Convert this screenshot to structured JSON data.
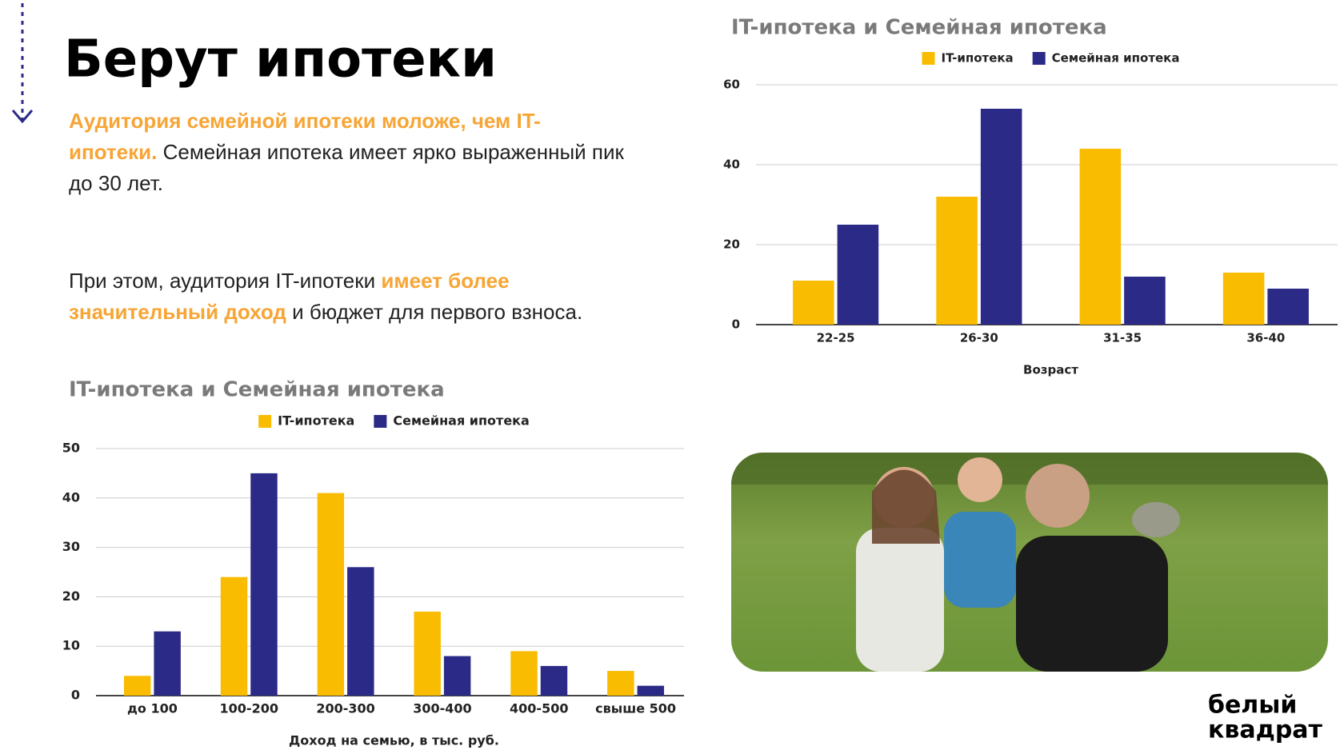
{
  "slide": {
    "title": "Берут ипотеки",
    "paragraph_1": {
      "highlight": "Аудитория семейной ипотеки моложе, чем IT-ипотеки.",
      "text": "Семейная ипотека имеет ярко выраженный пик до 30 лет."
    },
    "paragraph_2": {
      "text_1": "При этом, аудитория IT-ипотеки",
      "highlight": "имеет более значительный доход",
      "text_2": "и бюджет для первого взноса."
    },
    "logo": [
      "белый",
      "квадрат"
    ]
  },
  "chart_data": [
    {
      "type": "bar",
      "title": "IT-ипотека и Семейная ипотека",
      "x_label": "Возраст",
      "categories": [
        "22-25",
        "26-30",
        "31-35",
        "36-40"
      ],
      "series": [
        {
          "name": "IT-ипотека",
          "color": "#f9bc00",
          "values": [
            11,
            32,
            44,
            13
          ]
        },
        {
          "name": "Семейная ипотека",
          "color": "#2b2a86",
          "values": [
            25,
            54,
            12,
            9
          ]
        }
      ],
      "ylim": [
        0,
        60
      ],
      "yticks": [
        0,
        20,
        40,
        60
      ],
      "grid": true,
      "legend": "top"
    },
    {
      "type": "bar",
      "title": "IT-ипотека и Семейная ипотека",
      "x_label": "Доход на семью, в тыс. руб.",
      "categories": [
        "до 100",
        "100-200",
        "200-300",
        "300-400",
        "400-500",
        "свыше 500"
      ],
      "series": [
        {
          "name": "IT-ипотека",
          "color": "#f9bc00",
          "values": [
            4,
            24,
            41,
            17,
            9,
            5
          ]
        },
        {
          "name": "Семейная ипотека",
          "color": "#2b2a86",
          "values": [
            13,
            45,
            26,
            8,
            6,
            2
          ]
        }
      ],
      "ylim": [
        0,
        50
      ],
      "yticks": [
        0,
        10,
        20,
        30,
        40,
        50
      ],
      "grid": true,
      "legend": "top"
    }
  ]
}
